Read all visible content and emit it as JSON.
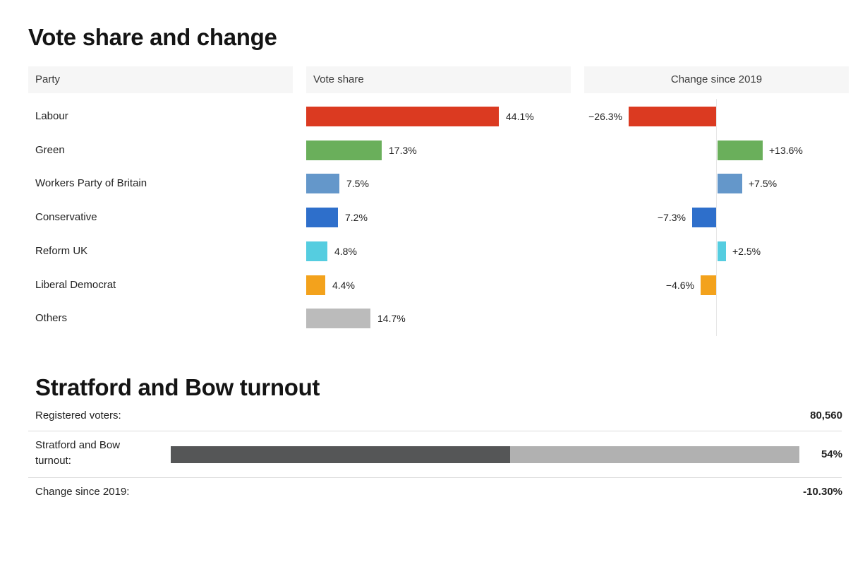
{
  "title": "Vote share and change",
  "headers": {
    "party": "Party",
    "vote_share": "Vote share",
    "change": "Change since 2019"
  },
  "chart_data": {
    "type": "bar",
    "categories": [
      "Labour",
      "Green",
      "Workers Party of Britain",
      "Conservative",
      "Reform UK",
      "Liberal Democrat",
      "Others"
    ],
    "series": [
      {
        "name": "Vote share",
        "values": [
          44.1,
          17.3,
          7.5,
          7.2,
          4.8,
          4.4,
          14.7
        ]
      },
      {
        "name": "Change since 2019",
        "values": [
          -26.3,
          13.6,
          7.5,
          -7.3,
          2.5,
          -4.6,
          null
        ]
      }
    ],
    "share_labels": [
      "44.1%",
      "17.3%",
      "7.5%",
      "7.2%",
      "4.8%",
      "4.4%",
      "14.7%"
    ],
    "change_labels": [
      "−26.3%",
      "+13.6%",
      "+7.5%",
      "−7.3%",
      "+2.5%",
      "−4.6%",
      null
    ],
    "colors": [
      "#db3a21",
      "#6aaf5b",
      "#6497ca",
      "#2e6fcb",
      "#55cde0",
      "#f3a21c",
      "#bbbbbb"
    ],
    "share_xlim": [
      0,
      50
    ],
    "change_xlim": [
      -30,
      30
    ]
  },
  "turnout": {
    "title": "Stratford and Bow turnout",
    "registered_label": "Registered voters:",
    "registered_value": "80,560",
    "turnout_label": "Stratford and Bow turnout:",
    "turnout_value": "54%",
    "turnout_fraction": 0.54,
    "change_label": "Change since 2019:",
    "change_value": "-10.30%",
    "fill_color": "#555657",
    "track_color": "#b1b1b1"
  }
}
